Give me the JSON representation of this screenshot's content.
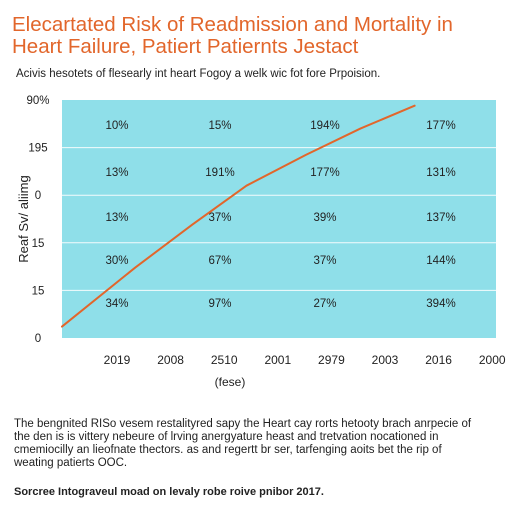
{
  "title_line1": "Elecartated Risk of Readmission and Mortality in",
  "title_line2": "Heart Failure,  Patiert Patiernts Jestact",
  "subtitle": "Acivis hesotets of flesearly int heart Fogoy a welk wic fot fore Prpoision.",
  "footnote_lines": [
    "The bengnited RISo vesem restalityred sapy the Heart cay rorts hetooty brach anrpecie of",
    "the den is is vittery nebeure of lrving anergyature heast and tretvation nocationed in",
    "cmemiocilly an lieofnate thectors. as and regertt br ser, tarfenging aoits bet the rip of",
    "weating patierts OOC."
  ],
  "source": "Sorcree Intograveul moad on levaly robe roive pnibor 2017.",
  "colors": {
    "title": "#e2662b",
    "plot_background": "#8fdfe9",
    "line": "#e2662b",
    "grid": "#ffffff"
  },
  "chart_data": {
    "type": "line",
    "title": "",
    "xlabel": "(fese)",
    "ylabel": "Reaf Sv/ aliimg",
    "y_tick_labels": [
      "90%",
      "195",
      "0",
      "15",
      "15",
      "0"
    ],
    "x_tick_labels": [
      "2019",
      "2008",
      "2510",
      "2001",
      "2979",
      "2003",
      "2016",
      "2000"
    ],
    "grid": true,
    "legend": "none",
    "cell_grid": [
      [
        "10%",
        "15%",
        "194%",
        "177%"
      ],
      [
        "13%",
        "191%",
        "177%",
        "131%"
      ],
      [
        "13%",
        "37%",
        "39%",
        "137%"
      ],
      [
        "30%",
        "67%",
        "37%",
        "144%"
      ],
      [
        "34%",
        "97%",
        "27%",
        "394%"
      ]
    ],
    "series": [
      {
        "x": [
          0.0,
          1.35,
          2.4,
          3.4,
          4.5,
          5.5,
          6.5
        ],
        "y": [
          0.24,
          1.48,
          2.38,
          3.2,
          3.85,
          4.4,
          4.88
        ]
      }
    ],
    "xlim": [
      0,
      8
    ],
    "ylim": [
      0,
      5
    ]
  }
}
